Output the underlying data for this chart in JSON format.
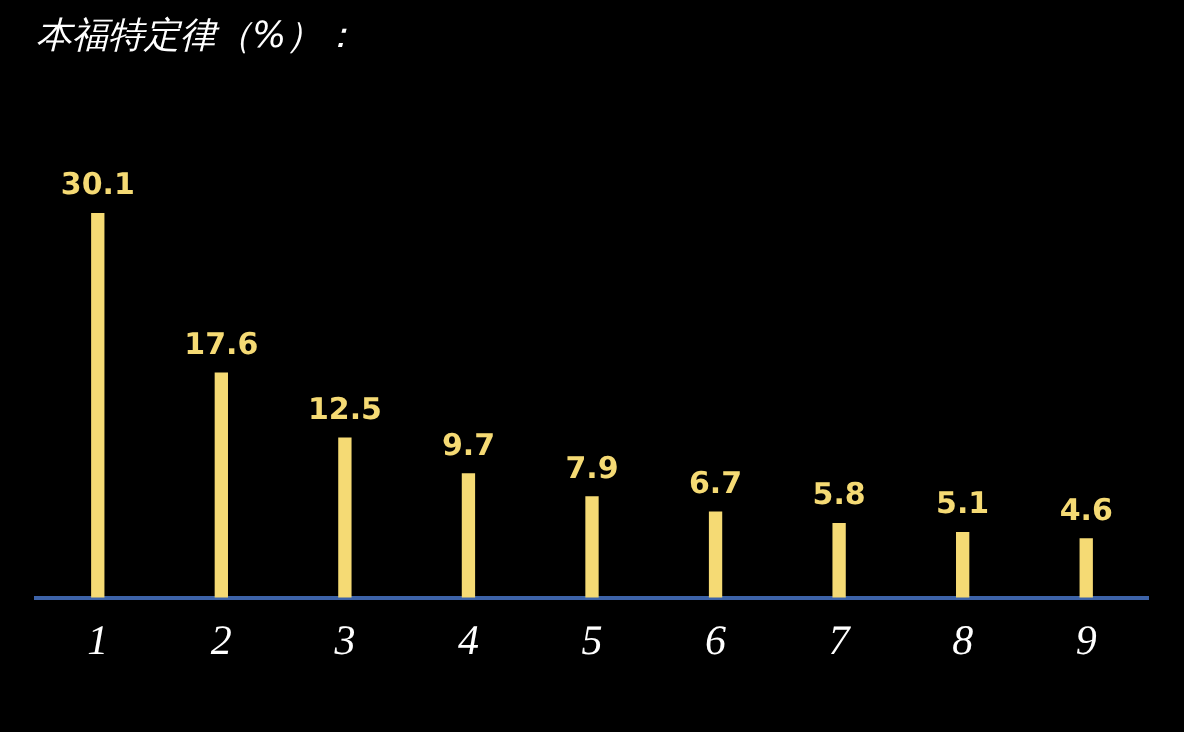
{
  "chart_data": {
    "type": "bar",
    "title": "本福特定律（%）：",
    "categories": [
      "1",
      "2",
      "3",
      "4",
      "5",
      "6",
      "7",
      "8",
      "9"
    ],
    "values": [
      30.1,
      17.6,
      12.5,
      9.7,
      7.9,
      6.7,
      5.8,
      5.1,
      4.6
    ],
    "color": "#f5da74",
    "data_labels": true,
    "grid": false,
    "legend": false
  }
}
